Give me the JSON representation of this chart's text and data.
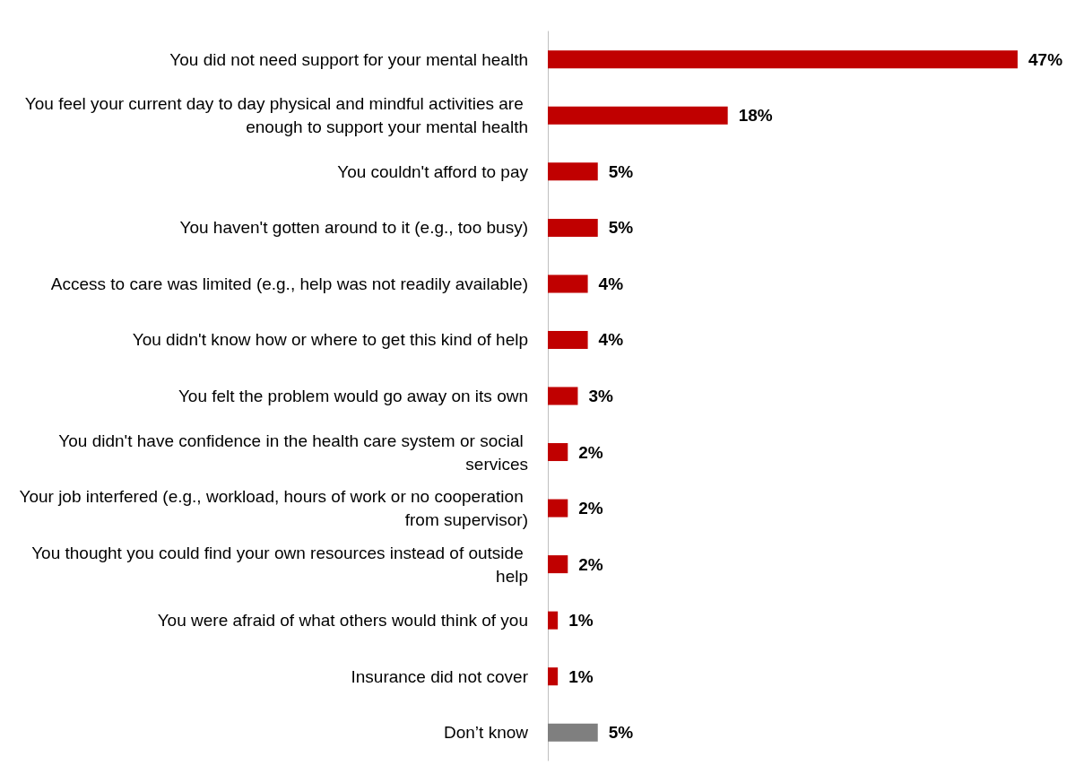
{
  "chart_data": {
    "type": "bar",
    "orientation": "horizontal",
    "categories": [
      "You did not need support for your mental health",
      "You feel your current day to day physical and mindful activities are enough to support your mental health",
      "You couldn't afford to pay",
      "You haven't gotten around to it (e.g., too busy)",
      "Access to care was limited (e.g., help was not readily available)",
      "You didn't know how or where to get this kind of help",
      "You felt the problem would go away on its own",
      "You didn't have confidence in the health care system or social services",
      "Your job interfered (e.g., workload, hours of work or no cooperation from supervisor)",
      "You thought you could find your own resources instead of outside help",
      "You were afraid of what others would think of you",
      "Insurance did not cover",
      "Don’t know"
    ],
    "values": [
      47,
      18,
      5,
      5,
      4,
      4,
      3,
      2,
      2,
      2,
      1,
      1,
      5
    ],
    "value_labels": [
      "47%",
      "18%",
      "5%",
      "5%",
      "4%",
      "4%",
      "3%",
      "2%",
      "2%",
      "2%",
      "1%",
      "1%",
      "5%"
    ],
    "colors": [
      "#c00000",
      "#c00000",
      "#c00000",
      "#c00000",
      "#c00000",
      "#c00000",
      "#c00000",
      "#c00000",
      "#c00000",
      "#c00000",
      "#c00000",
      "#c00000",
      "#7f7f7f"
    ]
  }
}
